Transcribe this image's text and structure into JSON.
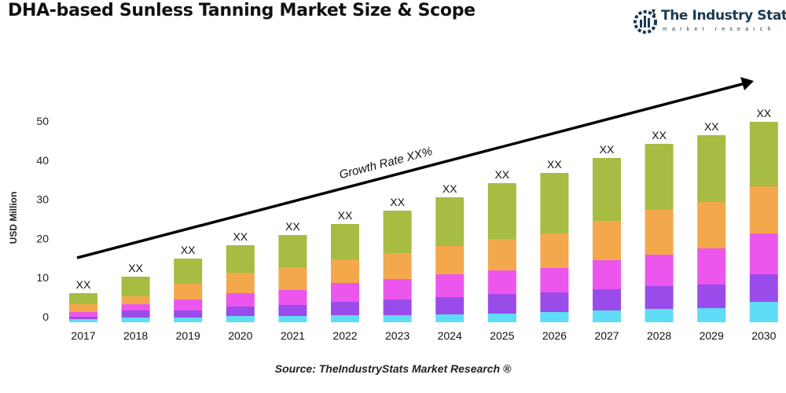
{
  "title": "DHA-based Sunless Tanning Market Size & Scope",
  "logo": {
    "name": "The Industry Stats",
    "tagline": "market research"
  },
  "source": "Source: TheIndustryStats Market Research ®",
  "chart_data": {
    "type": "bar",
    "stacked": true,
    "title": "DHA-based Sunless Tanning Market Size & Scope",
    "xlabel": "",
    "ylabel": "USD Million",
    "ylim": [
      0,
      50
    ],
    "yticks": [
      0,
      10,
      20,
      30,
      40,
      50
    ],
    "grid": false,
    "categories": [
      "2017",
      "2018",
      "2019",
      "2020",
      "2021",
      "2022",
      "2023",
      "2024",
      "2025",
      "2026",
      "2027",
      "2028",
      "2029",
      "2030"
    ],
    "bar_label": "XX",
    "annotation": "Growth Rate XX%",
    "colors": [
      "#5fdcf6",
      "#9a4ceb",
      "#ec56ed",
      "#f4a84c",
      "#a6bc42"
    ],
    "series": [
      {
        "values": [
          0.8,
          1.2,
          1.2,
          1.6,
          1.6,
          1.8,
          1.8,
          2.0,
          2.2,
          2.6,
          3.0,
          3.4,
          3.6,
          5.2
        ]
      },
      {
        "values": [
          0.6,
          1.8,
          1.8,
          2.4,
          2.8,
          3.4,
          4.0,
          4.4,
          5.0,
          5.0,
          5.4,
          5.8,
          6.0,
          7.0
        ]
      },
      {
        "values": [
          1.2,
          1.6,
          2.8,
          3.4,
          3.8,
          4.8,
          5.2,
          5.8,
          6.0,
          6.2,
          7.4,
          8.0,
          9.2,
          10.4
        ]
      },
      {
        "values": [
          2.0,
          2.0,
          4.0,
          5.2,
          5.8,
          6.0,
          6.6,
          7.2,
          8.0,
          8.8,
          10.0,
          11.4,
          11.8,
          12.0
        ]
      },
      {
        "values": [
          2.8,
          5.0,
          6.4,
          7.0,
          8.2,
          9.0,
          10.8,
          12.4,
          14.2,
          15.4,
          16.0,
          16.8,
          17.0,
          16.4
        ]
      }
    ]
  }
}
